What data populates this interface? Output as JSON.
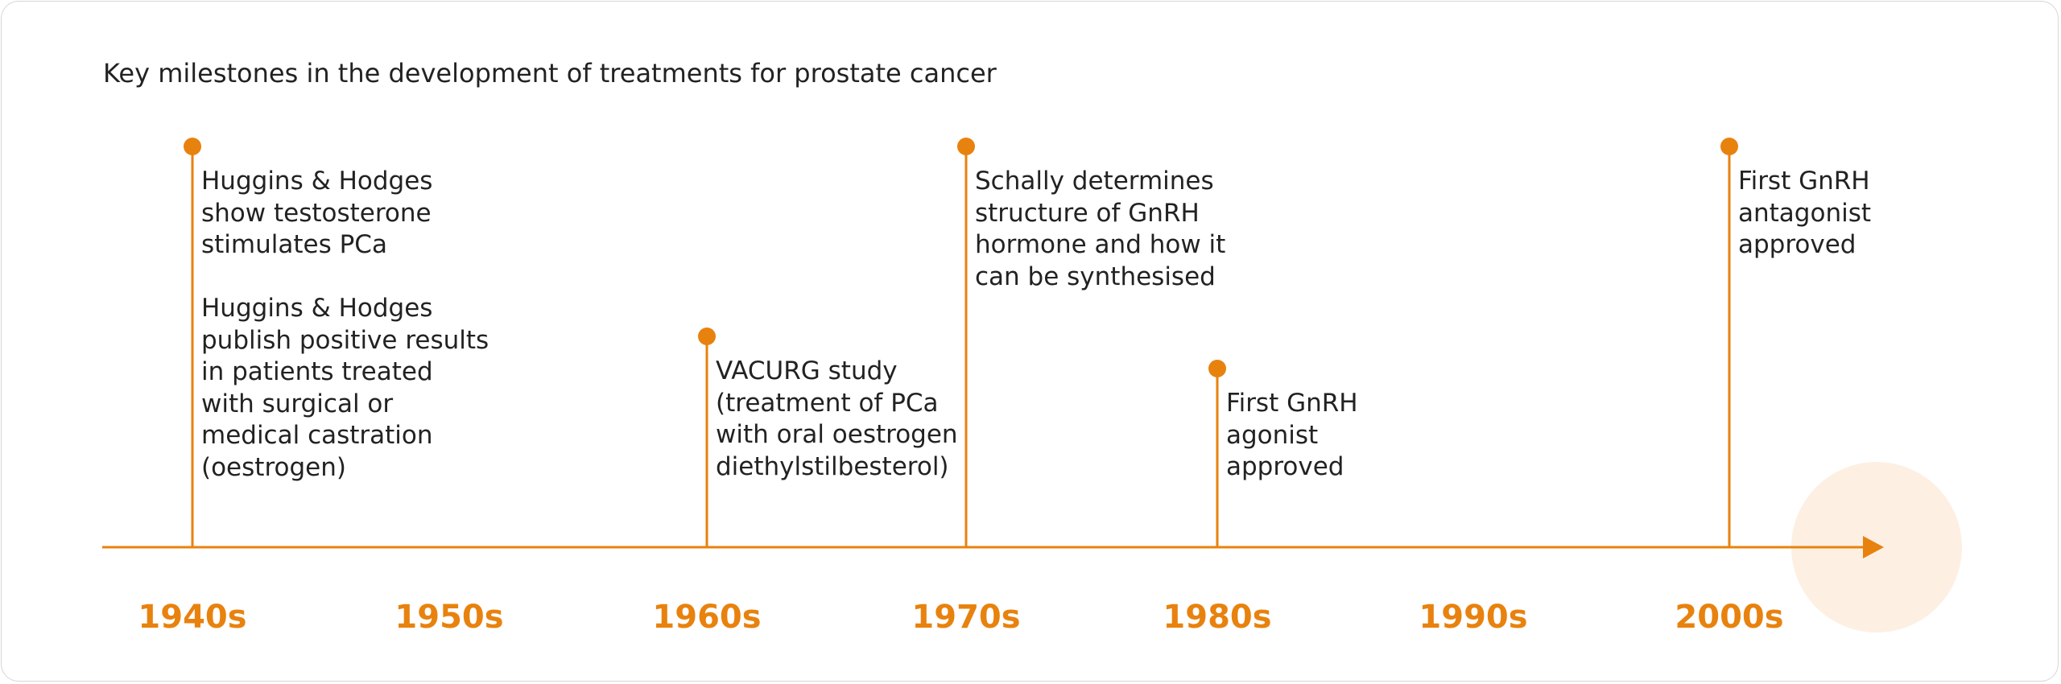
{
  "title": "Key milestones in the development of treatments for prostate cancer",
  "decades": [
    {
      "label": "1940s",
      "events": [
        [
          "Huggins & Hodges",
          "show testosterone",
          "stimulates PCa"
        ],
        [
          "Huggins & Hodges",
          "publish positive results",
          "in patients treated",
          "with surgical or",
          "medical castration",
          "(oestrogen)"
        ]
      ]
    },
    {
      "label": "1950s"
    },
    {
      "label": "1960s",
      "events": [
        [
          "VACURG study",
          "(treatment of PCa",
          "with oral oestrogen",
          "diethylstilbesterol)"
        ]
      ]
    },
    {
      "label": "1970s",
      "events": [
        [
          "Schally determines",
          "structure of GnRH",
          "hormone and how it",
          "can be synthesised"
        ]
      ]
    },
    {
      "label": "1980s",
      "events": [
        [
          "First GnRH",
          "agonist",
          "approved"
        ]
      ]
    },
    {
      "label": "1990s"
    },
    {
      "label": "2000s",
      "events": [
        [
          "First GnRH",
          "antagonist",
          "approved"
        ]
      ]
    }
  ]
}
